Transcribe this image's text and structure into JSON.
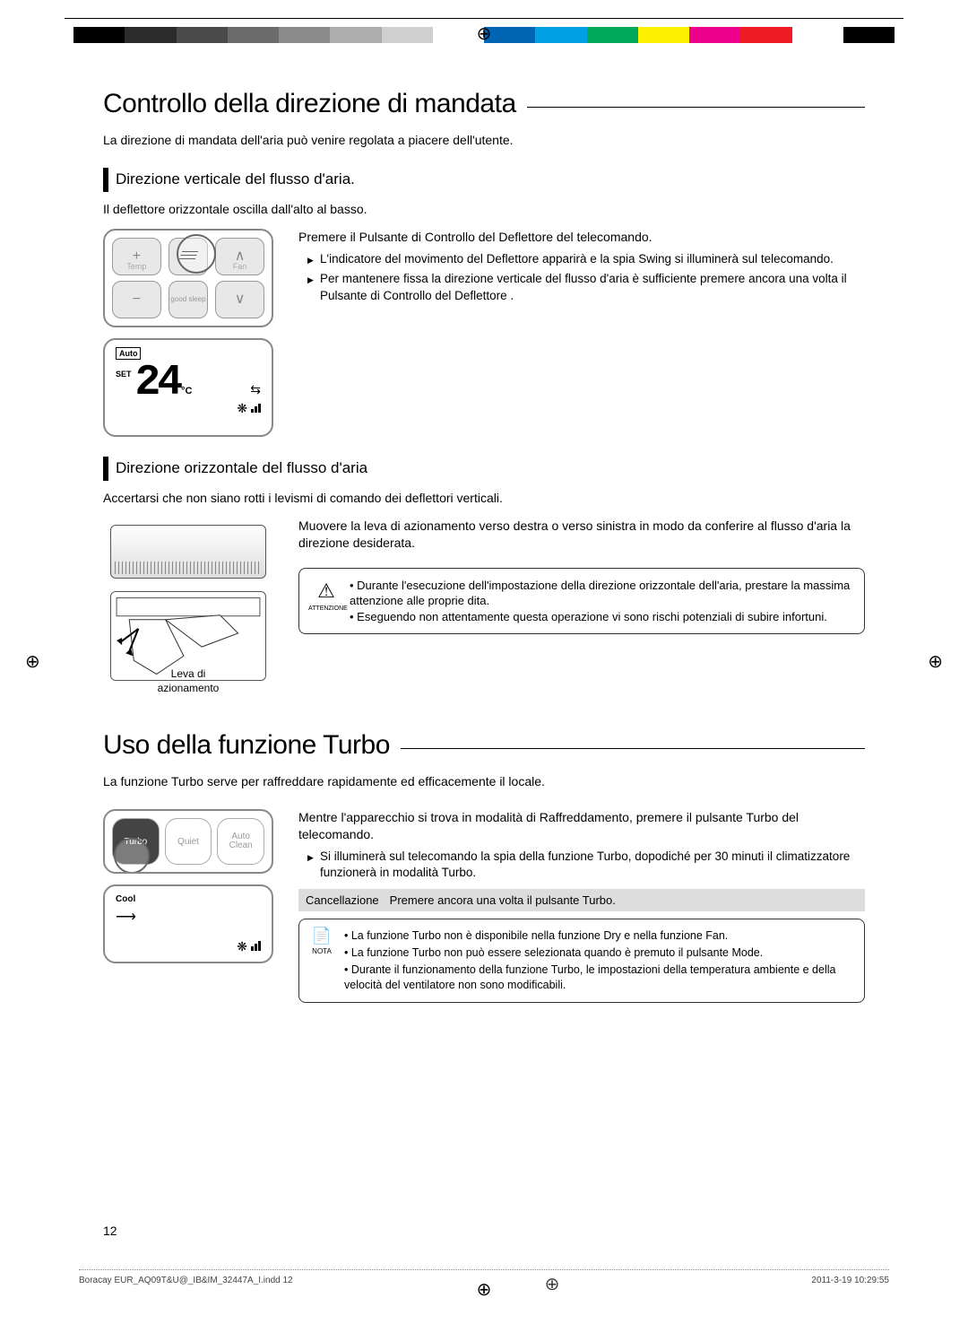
{
  "color_bar": [
    "#000000",
    "#2b2b2b",
    "#4a4a4a",
    "#6b6b6b",
    "#8c8c8c",
    "#adadad",
    "#cfcfcf",
    "#ffffff",
    "#0066b3",
    "#00a1e4",
    "#00a859",
    "#fff200",
    "#ec008c",
    "#ed1c24",
    "#ffffff",
    "#000000"
  ],
  "registration_mark": "⊕",
  "heading1": "Controllo della direzione di mandata",
  "intro1": "La direzione di mandata dell'aria può venire regolata a piacere dell'utente.",
  "sub1": "Direzione verticale del flusso d'aria.",
  "body1": "Il deflettore orizzontale oscilla dall'alto al basso.",
  "remote1": {
    "temp_label": "Temp",
    "fan_label": "Fan",
    "good_sleep": "good sleep",
    "plus": "+",
    "minus": "−",
    "up": "∧",
    "down": "∨"
  },
  "lcd1": {
    "auto": "Auto",
    "set": "SET",
    "temp": "24",
    "deg": "°C"
  },
  "step1_title": "Premere il Pulsante di Controllo del Deflettore        del telecomando.",
  "step1_bullets": [
    "L'indicatore del movimento del Deflettore apparirà e la spia Swing si illuminerà sul telecomando.",
    "Per mantenere fissa la direzione verticale del flusso d'aria è sufficiente premere ancora una volta il Pulsante di Controllo del Deflettore       ."
  ],
  "sub2": "Direzione orizzontale del flusso d'aria",
  "body2": "Accertarsi che non siano rotti i levismi di comando dei deflettori verticali.",
  "lever_caption_1": "Leva di",
  "lever_caption_2": "azionamento",
  "step2_text": "Muovere la leva di azionamento verso destra o verso sinistra in modo da conferire al flusso d'aria la direzione desiderata.",
  "caution": {
    "icon": "⚠",
    "label": "ATTENZIONE",
    "items": [
      "Durante l'esecuzione dell'impostazione della direzione orizzontale dell'aria, prestare la massima attenzione alle proprie dita.",
      "Eseguendo non attentamente questa operazione vi sono rischi potenziali di subire infortuni."
    ]
  },
  "heading2": "Uso della funzione Turbo",
  "intro2": "La funzione Turbo serve per raffreddare rapidamente ed efficacemente il locale.",
  "remote2": {
    "turbo": "Turbo",
    "quiet": "Quiet",
    "autoclean1": "Auto",
    "autoclean2": "Clean"
  },
  "lcd2": {
    "cool": "Cool"
  },
  "step3_title": "Mentre l'apparecchio si trova in modalità di Raffreddamento, premere il pulsante Turbo del telecomando.",
  "step3_bullets": [
    "Si illuminerà sul telecomando la spia della funzione Turbo, dopodiché per 30 minuti il climatizzatore funzionerà in modalità Turbo."
  ],
  "cancel_label": "Cancellazione",
  "cancel_text": "Premere ancora una volta il pulsante Turbo.",
  "note": {
    "icon": "📄",
    "label": "NOTA",
    "items": [
      "La funzione Turbo non è disponibile nella funzione Dry e nella funzione Fan.",
      "La funzione Turbo non può essere selezionata quando è premuto il pulsante Mode.",
      "Durante il funzionamento della funzione Turbo, le impostazioni della temperatura ambiente e della velocità del ventilatore non sono modificabili."
    ]
  },
  "page_number": "12",
  "footer_file": "Boracay EUR_AQ09T&U@_IB&IM_32447A_I.indd   12",
  "footer_date": "2011-3-19   10:29:55"
}
